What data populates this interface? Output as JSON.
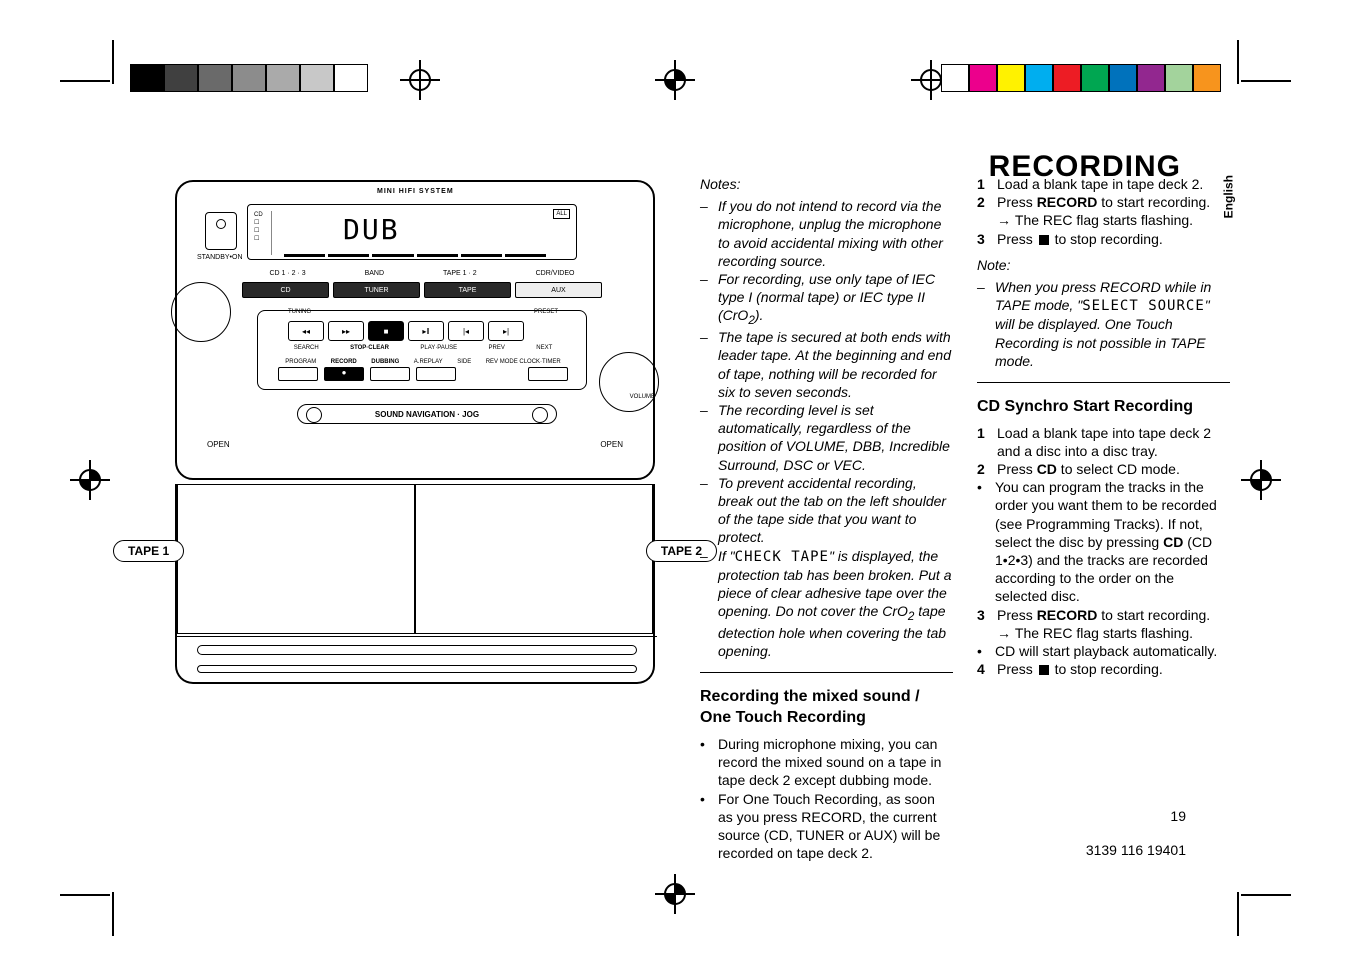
{
  "heading": "RECORDING",
  "sideLang": "English",
  "device": {
    "miniHifi": "MINI HIFI SYSTEM",
    "lcdText": "DUB",
    "standby": "STANDBY•ON",
    "row1_labels": [
      "CD 1 · 2 · 3",
      "BAND",
      "TAPE 1 · 2",
      "CDR/VIDEO"
    ],
    "row1_btns": [
      "CD",
      "TUNER",
      "TAPE",
      "AUX"
    ],
    "ctrl_top": [
      "TUNING",
      "PRESET"
    ],
    "ctrl_mid_labels": [
      "SEARCH",
      "STOP·CLEAR",
      "PLAY·PAUSE",
      "PREV",
      "NEXT"
    ],
    "ctrl_bot_labels": [
      "PROGRAM",
      "RECORD",
      "DUBBING",
      "A.REPLAY",
      "SIDE",
      "REV MODE CLOCK·TIMER"
    ],
    "navbar": "SOUND NAVIGATION · JOG",
    "open": "OPEN",
    "tape1": "TAPE 1",
    "tape2": "TAPE 2",
    "volume": "VOLUME"
  },
  "col1": {
    "notesHead": "Notes:",
    "n1": "If you do not intend to record via the microphone, unplug the microphone to avoid accidental mixing with other recording source.",
    "n2a": "For recording, use only tape of IEC type I (normal tape) or IEC type II (CrO",
    "n2b": ").",
    "n3": "The tape is secured at both ends with leader tape.  At the beginning and end of tape, nothing will be recorded for six to seven seconds.",
    "n4": "The recording level is set automatically, regardless of the position of VOLUME, DBB, Incredible Surround, DSC or VEC.",
    "n5": "To prevent accidental recording, break out the tab on the left shoulder of the tape side that you want to protect.",
    "n6a": "If  \"",
    "n6b": "CHECK TAPE",
    "n6c": "\" is displayed, the protection tab has been broken. Put a piece of clear adhesive tape over the opening.  Do not cover the CrO",
    "n6d": " tape detection hole when covering the tab opening.",
    "sub1": "Recording the mixed sound / One Touch Recording",
    "b1": "During microphone mixing, you can record the mixed sound on a tape in tape deck 2 except dubbing mode.",
    "b2": "For One Touch Recording, as soon as you press RECORD, the current source (CD, TUNER or AUX) will be recorded on tape deck 2."
  },
  "col2": {
    "s1": "Load a blank tape in tape deck 2.",
    "s2a": "Press ",
    "s2b": "RECORD",
    "s2c": " to start recording.",
    "s2arrow": "The REC flag starts flashing.",
    "s3a": "Press ",
    "s3b": " to stop recording.",
    "noteHead": "Note:",
    "note1a": "When you press RECORD while in TAPE mode, \"",
    "note1b": "SELECT SOURCE",
    "note1c": "\" will be displayed.  One Touch Recording is not possible in TAPE mode.",
    "sub2": "CD Synchro Start Recording",
    "c1": "Load a blank tape into tape deck 2 and a disc into a disc tray.",
    "c2a": "Press ",
    "c2b": "CD",
    "c2c": " to select CD mode.",
    "c2bul_a": "You can program the tracks in the order you want them to be recorded (see Programming Tracks). If not,  select the disc by pressing ",
    "c2bul_b": "CD",
    "c2bul_c": " (CD 1•2•3) and the tracks are recorded according to the order on the selected disc.",
    "c3a": "Press ",
    "c3b": "RECORD",
    "c3c": " to start recording.",
    "c3arrow": "The REC flag starts flashing.",
    "c3bul": "CD will start playback automatically.",
    "c4a": "Press ",
    "c4b": " to stop recording."
  },
  "footer": {
    "page": "19",
    "code": "3139 116 19401"
  },
  "colors": {
    "swatches_left": [
      "#000000",
      "#404040",
      "#6a6a6a",
      "#8c8c8c",
      "#aaaaaa",
      "#c8c8c8",
      "#ffffff"
    ],
    "swatches_right": [
      "#ffffff",
      "#ec008c",
      "#fff200",
      "#00aeef",
      "#ed1c24",
      "#00a651",
      "#0072bc",
      "#92278f",
      "#a3d39c",
      "#f7941d"
    ]
  }
}
